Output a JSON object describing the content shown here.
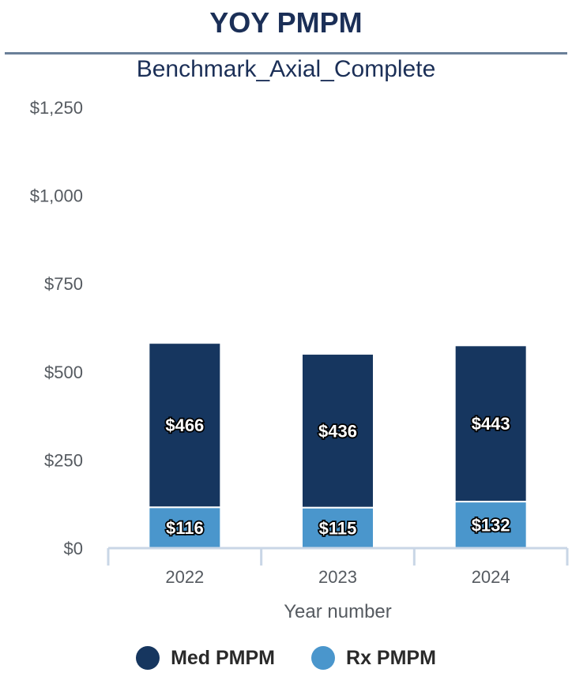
{
  "title": "YOY PMPM",
  "subtitle": "Benchmark_Axial_Complete",
  "colors": {
    "med": "#16365f",
    "rx": "#4a96cc",
    "axis": "#c9d6e6"
  },
  "chart_data": {
    "type": "bar",
    "stacked": true,
    "categories": [
      "2022",
      "2023",
      "2024"
    ],
    "series": [
      {
        "name": "Rx PMPM",
        "values": [
          116,
          115,
          132
        ],
        "labels": [
          "$116",
          "$115",
          "$132"
        ]
      },
      {
        "name": "Med PMPM",
        "values": [
          466,
          436,
          443
        ],
        "labels": [
          "$466",
          "$436",
          "$443"
        ]
      }
    ],
    "xlabel": "Year number",
    "ylabel": "",
    "ylim": [
      0,
      1250
    ],
    "yticks": [
      0,
      250,
      500,
      750,
      1000,
      1250
    ],
    "ytick_labels": [
      "$0",
      "$250",
      "$500",
      "$750",
      "$1,000",
      "$1,250"
    ],
    "grid": false,
    "legend": {
      "position": "bottom",
      "entries": [
        "Med PMPM",
        "Rx PMPM"
      ]
    }
  }
}
